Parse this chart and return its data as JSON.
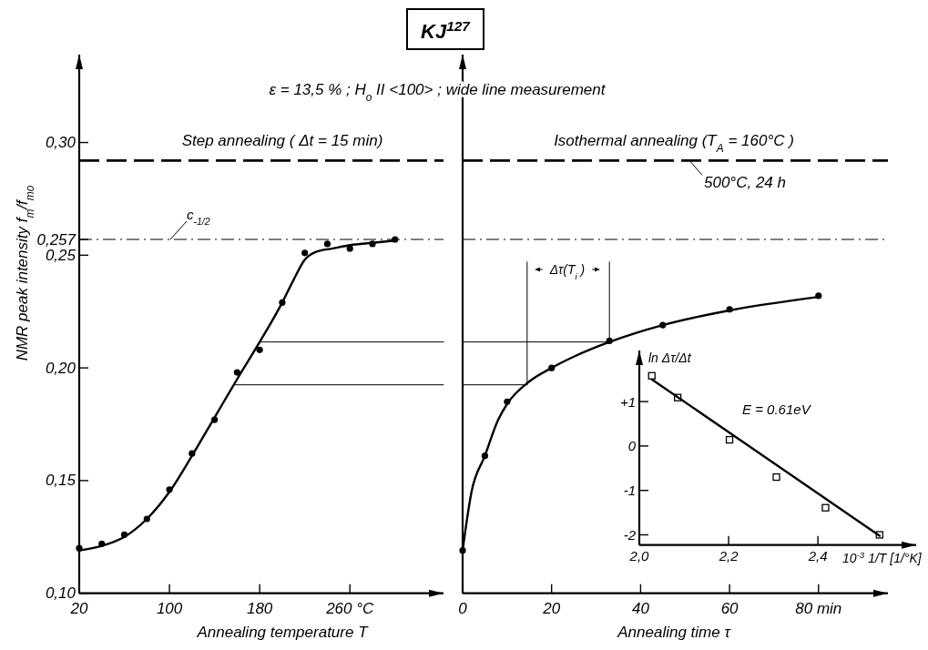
{
  "chart_data": [
    {
      "type": "other",
      "title": "KJ$^{127}$",
      "subtitle": "ε = 13,5 % ; H$_{o}$ II <100> ; wide line measurement"
    },
    {
      "type": "scatter",
      "title": "Step annealing ( Δt = 15 min)",
      "xlabel": "Annealing temperature  T",
      "ylabel": "NMR peak intensity   f$_{m}$/f$_{mo}$",
      "xlim": [
        20,
        343
      ],
      "ylim": [
        0.1,
        0.339
      ],
      "xticks": [
        20,
        100,
        180,
        {
          "value": 260,
          "label": "260 °C"
        }
      ],
      "yticks": [
        {
          "value": 0.1,
          "label": "0,10"
        },
        {
          "value": 0.15,
          "label": "0,15"
        },
        {
          "value": 0.2,
          "label": "0,20"
        },
        {
          "value": 0.25,
          "label": "0,25"
        },
        {
          "value": 0.257,
          "label": "0,257"
        },
        {
          "value": 0.3,
          "label": "0,30"
        }
      ],
      "series": [
        {
          "type": "scatter",
          "marker": "circle",
          "color": "#000000",
          "x": [
            20,
            40,
            60,
            80,
            100,
            120,
            140,
            160,
            180,
            200,
            220,
            240,
            260,
            280,
            300
          ],
          "values": [
            0.12,
            0.122,
            0.126,
            0.133,
            0.146,
            0.162,
            0.177,
            0.198,
            0.208,
            0.229,
            0.251,
            0.255,
            0.253,
            0.255,
            0.257
          ]
        },
        {
          "type": "line",
          "color": "#000000",
          "x": [
            20,
            40,
            60,
            80,
            100,
            120,
            140,
            160,
            180,
            200,
            210,
            220,
            230,
            245,
            260,
            280,
            300
          ],
          "values": [
            0.119,
            0.121,
            0.125,
            0.133,
            0.145,
            0.161,
            0.178,
            0.195,
            0.2115,
            0.229,
            0.239,
            0.248,
            0.2515,
            0.253,
            0.2545,
            0.2555,
            0.2565
          ]
        },
        {
          "type": "line",
          "color": "#000000",
          "x": [
            180,
            343
          ],
          "values": [
            0.2115,
            0.2115
          ]
        },
        {
          "type": "line",
          "color": "#000000",
          "x": [
            158,
            343
          ],
          "values": [
            0.1925,
            0.1925
          ]
        }
      ],
      "ref_lines": [
        {
          "axis": "y",
          "value": 0.292,
          "line_style": "dashed"
        },
        {
          "axis": "y",
          "value": 0.257,
          "line_style": "dashdot",
          "label": "c$_{-1/2}$"
        }
      ]
    },
    {
      "type": "scatter",
      "title": "Isothermal annealing (T$_{A}$ = 160°C )",
      "xlabel": "Annealing time  τ",
      "xlim": [
        0,
        95.6
      ],
      "ylim": [
        0.1,
        0.339
      ],
      "xticks": [
        0,
        20,
        40,
        60,
        {
          "value": 80,
          "label": "80 min"
        }
      ],
      "yticks": [
        0.1,
        0.15,
        0.2,
        0.25,
        0.257,
        0.3
      ],
      "tick_labels": "x",
      "series": [
        {
          "type": "scatter",
          "marker": "circle",
          "color": "#000000",
          "x": [
            0,
            5,
            10,
            20,
            33,
            45,
            60,
            80
          ],
          "values": [
            0.119,
            0.161,
            0.185,
            0.2,
            0.212,
            0.219,
            0.226,
            0.232
          ]
        },
        {
          "type": "line",
          "color": "#000000",
          "x": [
            0,
            2,
            5,
            8,
            10,
            15,
            20,
            25,
            33,
            45,
            60,
            80
          ],
          "values": [
            0.119,
            0.145,
            0.161,
            0.177,
            0.184,
            0.194,
            0.2,
            0.205,
            0.2115,
            0.219,
            0.2255,
            0.2315
          ]
        },
        {
          "type": "line",
          "color": "#000000",
          "x": [
            0,
            33
          ],
          "values": [
            0.2115,
            0.2115
          ]
        },
        {
          "type": "line",
          "color": "#000000",
          "x": [
            0,
            14.5
          ],
          "values": [
            0.1925,
            0.1925
          ]
        },
        {
          "type": "line",
          "color": "#000000",
          "x": [
            14.5,
            14.5
          ],
          "values": [
            0.1925,
            0.247
          ]
        },
        {
          "type": "line",
          "color": "#000000",
          "x": [
            33,
            33
          ],
          "values": [
            0.2115,
            0.247
          ]
        }
      ],
      "ref_lines": [
        {
          "axis": "y",
          "value": 0.292,
          "line_style": "dashed",
          "label": "500°C, 24 h"
        },
        {
          "axis": "y",
          "value": 0.257,
          "line_style": "dashdot"
        }
      ],
      "annotations": [
        "Δτ(T$_{i}$ )"
      ]
    },
    {
      "type": "scatter",
      "xlabel": "10$^{-3}$ 1/T [1/°K]",
      "ylabel": "ln Δτ/Δt",
      "xlim": [
        2.0,
        2.62
      ],
      "ylim": [
        -2.23,
        2.15
      ],
      "xticks": [
        {
          "value": 2.0,
          "label": "2,0"
        },
        {
          "value": 2.2,
          "label": "2,2"
        },
        {
          "value": 2.4,
          "label": "2,4"
        }
      ],
      "yticks": [
        {
          "value": 1,
          "label": "+1"
        },
        0,
        -1,
        -2
      ],
      "series": [
        {
          "type": "scatter",
          "marker": "square",
          "color": "#000000",
          "x": [
            2.028,
            2.086,
            2.202,
            2.307,
            2.417,
            2.538
          ],
          "values": [
            1.58,
            1.09,
            0.14,
            -0.7,
            -1.39,
            -2.0
          ]
        },
        {
          "type": "line",
          "color": "#000000",
          "x": [
            2.028,
            2.538
          ],
          "values": [
            1.5,
            -2.02
          ]
        }
      ],
      "annotations": [
        "E = 0.61eV"
      ]
    }
  ]
}
